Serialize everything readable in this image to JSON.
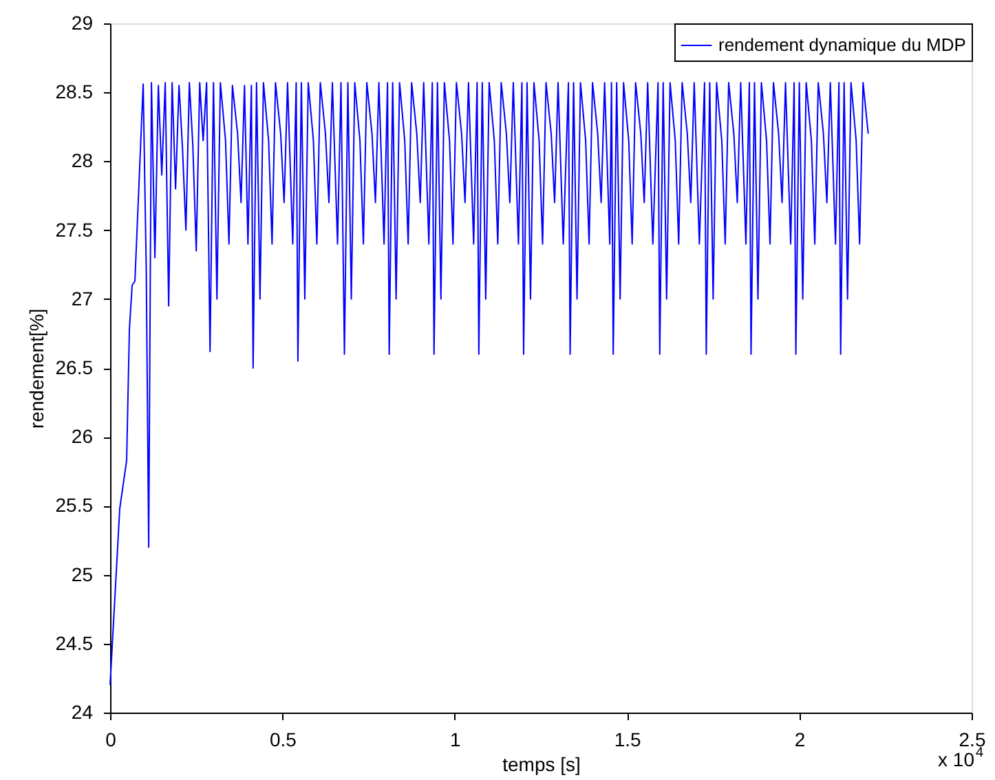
{
  "chart_data": {
    "type": "line",
    "xlabel": "temps [s]",
    "ylabel": "rendement[%]",
    "annotations": [
      "x 10$^{4}$"
    ],
    "xlim": [
      0,
      2.5
    ],
    "ylim": [
      24,
      29
    ],
    "xticks": [
      0,
      0.5,
      1,
      1.5,
      2,
      2.5
    ],
    "yticks": [
      24,
      24.5,
      25,
      25.5,
      26,
      26.5,
      27,
      27.5,
      28,
      28.5,
      29
    ],
    "grid": false,
    "legend": "top right",
    "marker": "none",
    "line_style": "solid",
    "series": [
      {
        "name": "rendement dynamique du MDP",
        "color": "#0000ff",
        "x": [
          0,
          0.028,
          0.048,
          0.056,
          0.064,
          0.072,
          0.096,
          0.105,
          0.112,
          0.12,
          0.13,
          0.14,
          0.15,
          0.16,
          0.17,
          0.18,
          0.19,
          0.2,
          0.21,
          0.22,
          0.23,
          0.24,
          0.25,
          0.26,
          0.27,
          0.28,
          0.29,
          0.3,
          0.31,
          0.32,
          0.335,
          0.345,
          0.355,
          0.37,
          0.38,
          0.39,
          0.4,
          0.41,
          0.415,
          0.425,
          0.435,
          0.445,
          0.46,
          0.47,
          0.48,
          0.495,
          0.505,
          0.515,
          0.53,
          0.54,
          0.545,
          0.555,
          0.565,
          0.575,
          0.59,
          0.6,
          0.61,
          0.625,
          0.635,
          0.645,
          0.66,
          0.67,
          0.68,
          0.69,
          0.7,
          0.71,
          0.725,
          0.735,
          0.745,
          0.76,
          0.77,
          0.78,
          0.795,
          0.805,
          0.81,
          0.82,
          0.83,
          0.84,
          0.855,
          0.865,
          0.875,
          0.89,
          0.9,
          0.91,
          0.925,
          0.935,
          0.94,
          0.95,
          0.96,
          0.97,
          0.985,
          0.995,
          1.005,
          1.02,
          1.03,
          1.04,
          1.055,
          1.065,
          1.07,
          1.08,
          1.09,
          1.1,
          1.115,
          1.125,
          1.135,
          1.15,
          1.16,
          1.17,
          1.185,
          1.195,
          1.2,
          1.21,
          1.22,
          1.23,
          1.245,
          1.255,
          1.265,
          1.28,
          1.29,
          1.3,
          1.315,
          1.33,
          1.335,
          1.345,
          1.355,
          1.365,
          1.38,
          1.39,
          1.4,
          1.415,
          1.425,
          1.435,
          1.45,
          1.455,
          1.46,
          1.47,
          1.48,
          1.49,
          1.505,
          1.515,
          1.525,
          1.54,
          1.55,
          1.56,
          1.575,
          1.59,
          1.595,
          1.605,
          1.615,
          1.625,
          1.64,
          1.65,
          1.66,
          1.675,
          1.685,
          1.695,
          1.71,
          1.725,
          1.73,
          1.74,
          1.75,
          1.76,
          1.775,
          1.785,
          1.795,
          1.81,
          1.82,
          1.83,
          1.845,
          1.855,
          1.86,
          1.87,
          1.88,
          1.89,
          1.905,
          1.915,
          1.925,
          1.94,
          1.95,
          1.96,
          1.975,
          1.985,
          1.99,
          2.0,
          2.01,
          2.02,
          2.035,
          2.045,
          2.055,
          2.07,
          2.08,
          2.09,
          2.105,
          2.115,
          2.12,
          2.13,
          2.14,
          2.15,
          2.165,
          2.175,
          2.185,
          2.2
        ],
        "values": [
          24.2,
          25.48,
          25.83,
          26.78,
          27.1,
          27.13,
          28.56,
          27.2,
          25.2,
          28.57,
          27.3,
          28.55,
          27.9,
          28.57,
          26.95,
          28.57,
          27.8,
          28.55,
          28.1,
          27.5,
          28.57,
          28.12,
          27.35,
          28.57,
          28.15,
          28.57,
          26.62,
          28.57,
          27.0,
          28.57,
          28.15,
          27.4,
          28.55,
          28.2,
          27.7,
          28.55,
          27.4,
          28.55,
          26.5,
          28.57,
          27.0,
          28.57,
          28.15,
          27.4,
          28.57,
          28.2,
          27.7,
          28.57,
          27.4,
          28.57,
          26.55,
          28.57,
          27.0,
          28.57,
          28.15,
          27.4,
          28.57,
          28.2,
          27.7,
          28.57,
          27.4,
          28.57,
          26.6,
          28.57,
          27.0,
          28.57,
          28.15,
          27.4,
          28.57,
          28.2,
          27.7,
          28.57,
          27.4,
          28.57,
          26.6,
          28.57,
          27.0,
          28.57,
          28.15,
          27.4,
          28.57,
          28.2,
          27.7,
          28.57,
          27.4,
          28.57,
          26.6,
          28.57,
          27.0,
          28.57,
          28.15,
          27.4,
          28.57,
          28.2,
          27.7,
          28.57,
          27.4,
          28.57,
          26.6,
          28.57,
          27.0,
          28.57,
          28.15,
          27.4,
          28.57,
          28.2,
          27.7,
          28.57,
          27.4,
          28.57,
          26.6,
          28.57,
          27.0,
          28.57,
          28.15,
          27.4,
          28.57,
          28.2,
          27.7,
          28.57,
          27.4,
          28.57,
          26.6,
          28.57,
          27.0,
          28.57,
          28.15,
          27.4,
          28.57,
          28.2,
          27.7,
          28.57,
          27.4,
          28.57,
          26.6,
          28.57,
          27.0,
          28.57,
          28.15,
          27.4,
          28.57,
          28.2,
          27.7,
          28.57,
          27.4,
          28.57,
          26.6,
          28.57,
          27.0,
          28.57,
          28.15,
          27.4,
          28.57,
          28.2,
          27.7,
          28.57,
          27.4,
          28.57,
          26.6,
          28.57,
          27.0,
          28.57,
          28.15,
          27.4,
          28.57,
          28.2,
          27.7,
          28.57,
          27.4,
          28.57,
          26.6,
          28.57,
          27.0,
          28.57,
          28.15,
          27.4,
          28.57,
          28.2,
          27.7,
          28.57,
          27.4,
          28.57,
          26.6,
          28.57,
          27.0,
          28.57,
          28.15,
          27.4,
          28.57,
          28.2,
          27.7,
          28.57,
          27.4,
          28.57,
          26.6,
          28.57,
          27.0,
          28.57,
          28.15,
          27.4,
          28.57,
          28.2
        ]
      }
    ]
  }
}
